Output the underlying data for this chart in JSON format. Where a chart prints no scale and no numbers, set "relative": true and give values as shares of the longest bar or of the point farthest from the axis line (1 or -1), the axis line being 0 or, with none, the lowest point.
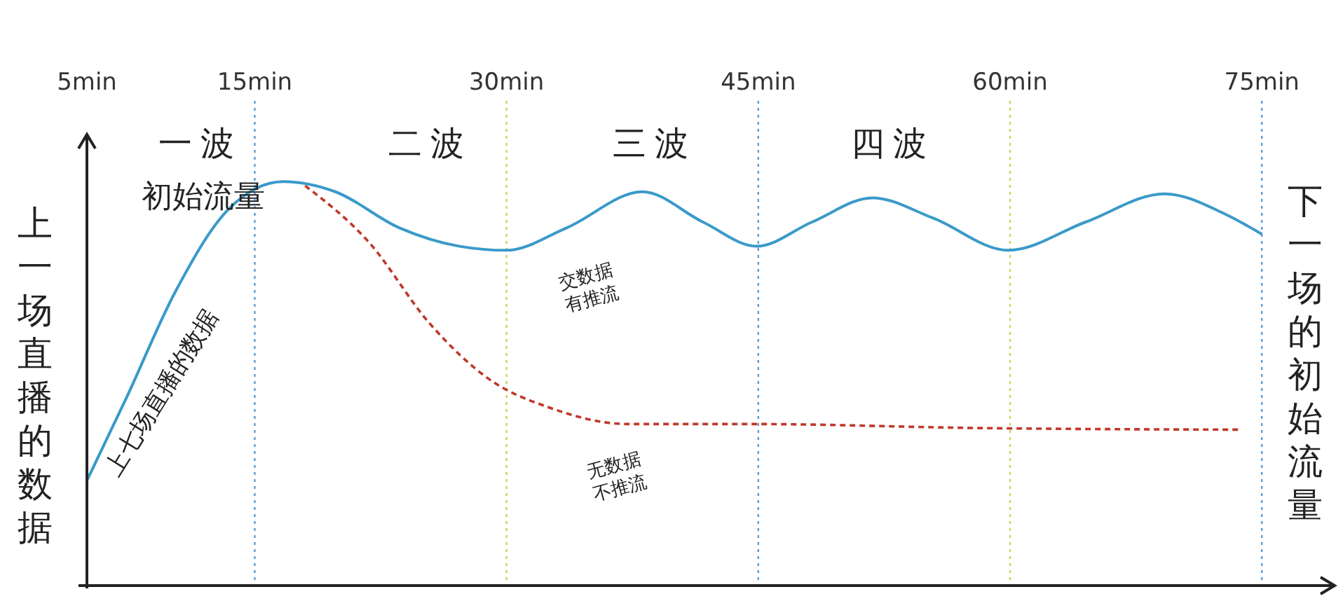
{
  "chart_data": {
    "type": "line",
    "relative": true,
    "ylabel": "上一场直播的数据",
    "y2label": "下一场的初始流量",
    "xlim": [
      5,
      79
    ],
    "xticks": [
      {
        "value": 5,
        "label": "5min"
      },
      {
        "value": 15,
        "label": "15min"
      },
      {
        "value": 30,
        "label": "30min"
      },
      {
        "value": 45,
        "label": "45min"
      },
      {
        "value": 60,
        "label": "60min"
      },
      {
        "value": 75,
        "label": "75min"
      }
    ],
    "series": [
      {
        "color": "#3a9ac9",
        "line_style": "solid",
        "x": [
          5,
          7.3,
          10.3,
          13.4,
          16.7,
          19.8,
          23.6,
          27.2,
          30,
          33.6,
          38.1,
          41.7,
          44.9,
          48.2,
          51.8,
          55.4,
          59.9,
          64.5,
          69.2,
          72.8,
          75
        ],
        "values": [
          0.26,
          0.46,
          0.73,
          0.93,
          1.0,
          0.975,
          0.886,
          0.84,
          0.83,
          0.886,
          0.975,
          0.9,
          0.84,
          0.9,
          0.96,
          0.91,
          0.83,
          0.9,
          0.97,
          0.92,
          0.87
        ]
      },
      {
        "color": "#c0392b",
        "line_style": "dashed",
        "x": [
          18,
          21.8,
          25.4,
          29,
          32.6,
          37.2,
          44.4,
          58.2,
          73.7
        ],
        "values": [
          0.99,
          0.85,
          0.65,
          0.51,
          0.44,
          0.4,
          0.4,
          0.39,
          0.386
        ]
      }
    ],
    "ref_lines": [
      {
        "axis": "x",
        "value": 15,
        "color": "#5b9bd5",
        "line_style": "dotted"
      },
      {
        "axis": "x",
        "value": 30,
        "color": "#c9d65a",
        "line_style": "dotted"
      },
      {
        "axis": "x",
        "value": 45,
        "color": "#5b9bd5",
        "line_style": "dotted"
      },
      {
        "axis": "x",
        "value": 60,
        "color": "#c9d65a",
        "line_style": "dotted"
      },
      {
        "axis": "x",
        "value": 75,
        "color": "#5b9bd5",
        "line_style": "dotted"
      }
    ],
    "annotations": [
      "一波",
      "二波",
      "三波",
      "四波",
      "初始流量",
      "上七场直播的数据",
      "交数据有推流",
      "无数据不推流"
    ]
  }
}
